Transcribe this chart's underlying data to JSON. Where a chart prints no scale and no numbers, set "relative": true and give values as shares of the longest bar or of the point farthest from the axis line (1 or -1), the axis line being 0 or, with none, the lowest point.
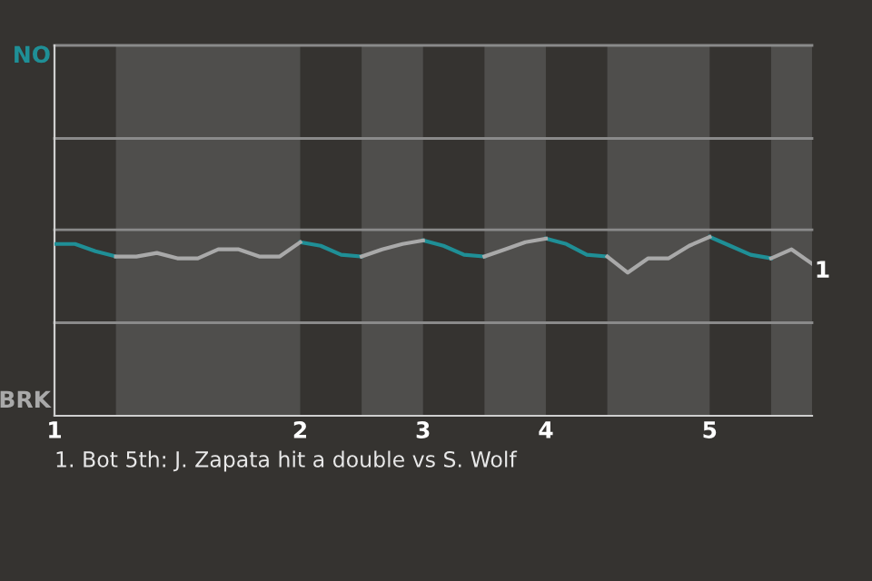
{
  "chart_data": {
    "type": "line",
    "categories": [
      "1",
      null,
      null,
      null,
      null,
      null,
      null,
      null,
      null,
      null,
      null,
      null,
      "2",
      null,
      null,
      null,
      null,
      null,
      "3",
      null,
      null,
      null,
      null,
      null,
      "4",
      null,
      null,
      null,
      null,
      null,
      null,
      null,
      "5",
      null,
      null,
      null,
      null,
      null
    ],
    "relative": true,
    "series": [
      {
        "color": "#1f8f96",
        "values": [
          0.96,
          0.96,
          0.92,
          0.89,
          null,
          null,
          null,
          null,
          null,
          null,
          null,
          null,
          0.97,
          0.95,
          0.9,
          0.89,
          null,
          null,
          0.98,
          0.95,
          0.9,
          0.89,
          null,
          null,
          0.99,
          0.96,
          0.9,
          0.89,
          null,
          null,
          null,
          null,
          1,
          0.95,
          0.9,
          0.88,
          null,
          null
        ]
      },
      {
        "color": "#a9a9a9",
        "values": [
          null,
          null,
          null,
          0.89,
          0.89,
          0.91,
          0.88,
          0.88,
          0.93,
          0.93,
          0.89,
          0.89,
          0.97,
          null,
          null,
          0.89,
          0.93,
          0.96,
          0.98,
          null,
          null,
          0.89,
          0.93,
          0.97,
          0.99,
          null,
          null,
          0.89,
          0.8,
          0.88,
          0.88,
          0.95,
          1,
          null,
          null,
          0.88,
          0.93,
          0.85
        ]
      }
    ],
    "ref_lines": [
      {
        "axis": "y",
        "value": 0.52,
        "color": "#8a8a8a"
      },
      {
        "axis": "y",
        "value": 1.04,
        "color": "#8a8a8a"
      },
      {
        "axis": "y",
        "value": 1.55,
        "color": "#8a8a8a"
      },
      {
        "axis": "y",
        "value": 2.07,
        "color": "#8a8a8a"
      }
    ],
    "annotations": [
      "NO",
      "BRK",
      "1",
      "1. Bot 5th: J. Zapata hit a double vs S. Wolf"
    ],
    "legend": false
  }
}
